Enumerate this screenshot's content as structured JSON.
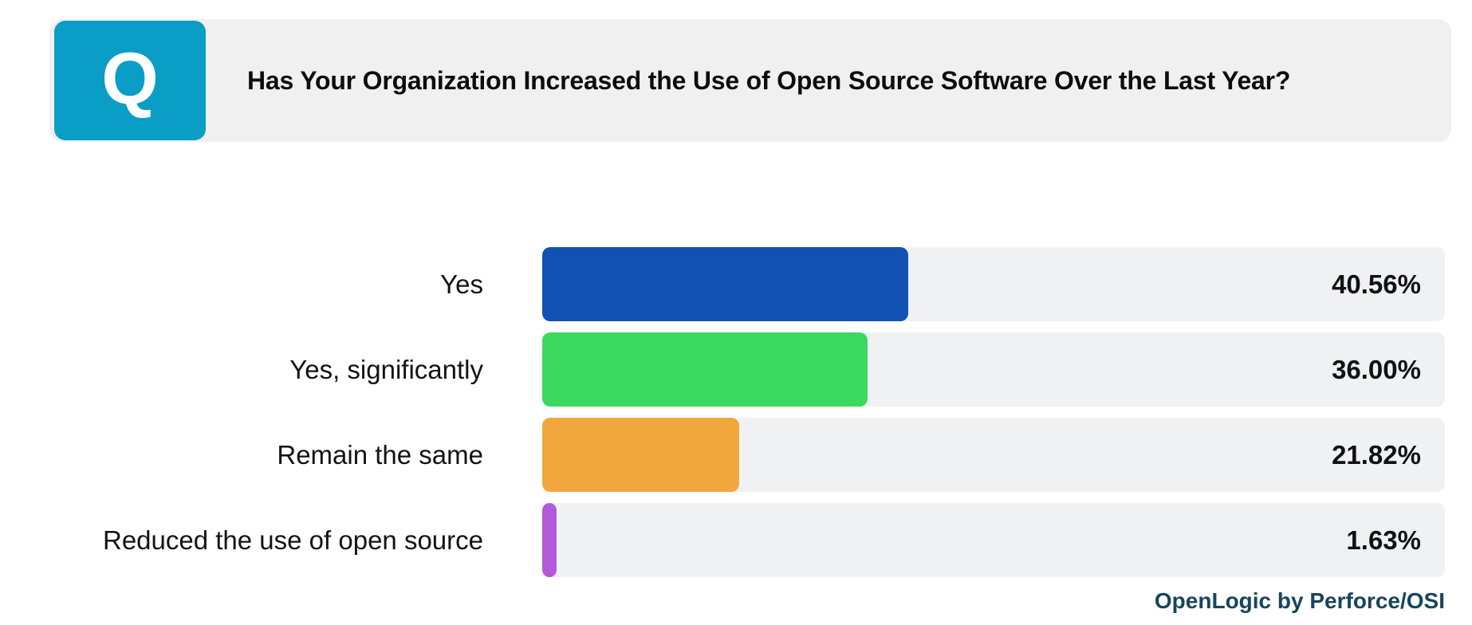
{
  "header": {
    "icon_label": "Q",
    "title": "Has Your Organization Increased the Use of Open Source Software Over the Last Year?"
  },
  "footer": {
    "attribution": "OpenLogic by Perforce/OSI"
  },
  "colors": {
    "question_tile": "#0a9dc6",
    "header_bg": "#f0f0f0",
    "track_bg": "#f0f1f2",
    "attribution_text": "#17455c"
  },
  "chart_data": {
    "type": "bar",
    "orientation": "horizontal",
    "title": "Has Your Organization Increased the Use of Open Source Software Over the Last Year?",
    "categories": [
      "Yes",
      "Yes, significantly",
      "Remain the same",
      "Reduced the use of open source"
    ],
    "values": [
      40.56,
      36.0,
      21.82,
      1.63
    ],
    "value_labels": [
      "40.56%",
      "36.00%",
      "21.82%",
      "1.63%"
    ],
    "bar_colors": [
      "#1151b3",
      "#3cd961",
      "#f2a73e",
      "#b35ad8"
    ],
    "xlim": [
      0,
      100
    ],
    "grid": false,
    "legend": "none",
    "value_label_position": "inside-right",
    "source": "OpenLogic by Perforce/OSI"
  }
}
